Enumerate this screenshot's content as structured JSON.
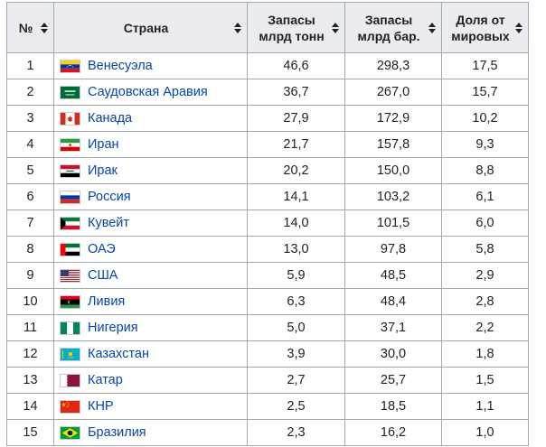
{
  "headers": {
    "number": "№",
    "country": "Страна",
    "reserves_tons_line1": "Запасы",
    "reserves_tons_line2": "млрд тонн",
    "reserves_barrels_line1": "Запасы",
    "reserves_barrels_line2": "млрд бар.",
    "world_share_line1": "Доля от",
    "world_share_line2": "мировых"
  },
  "rows": [
    {
      "n": "1",
      "country": "Венесуэла",
      "flag": "venezuela-flag",
      "tons": "46,6",
      "barrels": "298,3",
      "share": "17,5"
    },
    {
      "n": "2",
      "country": "Саудовская Аравия",
      "flag": "saudi-arabia-flag",
      "tons": "36,7",
      "barrels": "267,0",
      "share": "15,7"
    },
    {
      "n": "3",
      "country": "Канада",
      "flag": "canada-flag",
      "tons": "27,9",
      "barrels": "172,9",
      "share": "10,2"
    },
    {
      "n": "4",
      "country": "Иран",
      "flag": "iran-flag",
      "tons": "21,7",
      "barrels": "157,8",
      "share": "9,3"
    },
    {
      "n": "5",
      "country": "Ирак",
      "flag": "iraq-flag",
      "tons": "20,2",
      "barrels": "150,0",
      "share": "8,8"
    },
    {
      "n": "6",
      "country": "Россия",
      "flag": "russia-flag",
      "tons": "14,1",
      "barrels": "103,2",
      "share": "6,1"
    },
    {
      "n": "7",
      "country": "Кувейт",
      "flag": "kuwait-flag",
      "tons": "14,0",
      "barrels": "101,5",
      "share": "6,0"
    },
    {
      "n": "8",
      "country": "ОАЭ",
      "flag": "uae-flag",
      "tons": "13,0",
      "barrels": "97,8",
      "share": "5,8"
    },
    {
      "n": "9",
      "country": "США",
      "flag": "usa-flag",
      "tons": "5,9",
      "barrels": "48,5",
      "share": "2,9"
    },
    {
      "n": "10",
      "country": "Ливия",
      "flag": "libya-flag",
      "tons": "6,3",
      "barrels": "48,4",
      "share": "2,8"
    },
    {
      "n": "11",
      "country": "Нигерия",
      "flag": "nigeria-flag",
      "tons": "5,0",
      "barrels": "37,1",
      "share": "2,2"
    },
    {
      "n": "12",
      "country": "Казахстан",
      "flag": "kazakhstan-flag",
      "tons": "3,9",
      "barrels": "30,0",
      "share": "1,8"
    },
    {
      "n": "13",
      "country": "Катар",
      "flag": "qatar-flag",
      "tons": "2,7",
      "barrels": "25,7",
      "share": "1,5"
    },
    {
      "n": "14",
      "country": "КНР",
      "flag": "china-flag",
      "tons": "2,5",
      "barrels": "18,5",
      "share": "1,1"
    },
    {
      "n": "15",
      "country": "Бразилия",
      "flag": "brazil-flag",
      "tons": "2,3",
      "barrels": "16,2",
      "share": "1,0"
    }
  ],
  "colors": {
    "header_bg": "#eaecf0",
    "border": "#a2a9b1",
    "link": "#0645ad",
    "text": "#222222"
  }
}
